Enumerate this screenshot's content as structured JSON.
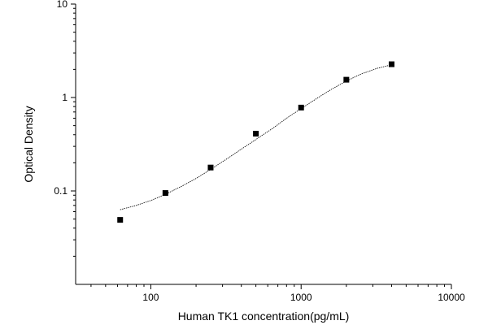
{
  "chart_data": {
    "type": "scatter",
    "title": "",
    "xlabel": "Human TK1 concentration(pg/mL)",
    "ylabel": "Optical Density",
    "x_scale": "log",
    "y_scale": "log",
    "xlim": [
      31.6,
      10000
    ],
    "ylim": [
      0.01,
      10
    ],
    "x_major_ticks": [
      {
        "value": 100,
        "label": "100"
      },
      {
        "value": 1000,
        "label": "1000"
      },
      {
        "value": 10000,
        "label": "10000"
      }
    ],
    "y_major_ticks": [
      {
        "value": 0.1,
        "label": "0.1"
      },
      {
        "value": 1,
        "label": "1"
      },
      {
        "value": 10,
        "label": "10"
      }
    ],
    "grid": false,
    "series": [
      {
        "marker": "square",
        "color": "#000000",
        "x": [
          62.5,
          125,
          250,
          500,
          1000,
          2000,
          4000
        ],
        "y": [
          0.049,
          0.095,
          0.178,
          0.41,
          0.78,
          1.55,
          2.27
        ]
      }
    ],
    "fit_curve": {
      "style": "dotted",
      "x": [
        62.5,
        80,
        100,
        125,
        160,
        200,
        250,
        320,
        400,
        500,
        650,
        800,
        1000,
        1300,
        1600,
        2000,
        2500,
        3200,
        4000
      ],
      "y": [
        0.063,
        0.07,
        0.079,
        0.092,
        0.112,
        0.136,
        0.17,
        0.22,
        0.28,
        0.355,
        0.47,
        0.6,
        0.76,
        1.0,
        1.23,
        1.5,
        1.78,
        2.05,
        2.24
      ]
    }
  }
}
